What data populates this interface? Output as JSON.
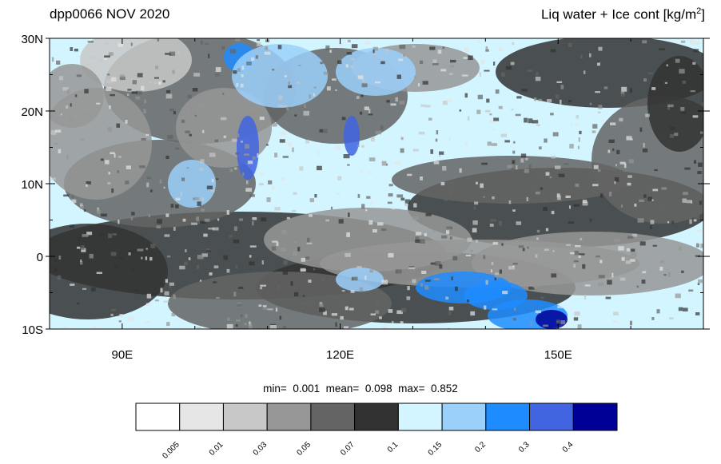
{
  "header": {
    "left_title": "dpp0066 NOV 2020",
    "right_title_prefix": "Liq water + Ice cont [kg/m",
    "right_title_sup": "2",
    "right_title_suffix": "]"
  },
  "map": {
    "lon_range": [
      80,
      170
    ],
    "lat_range": [
      -10,
      30
    ],
    "lat_ticks": [
      {
        "value": 30,
        "label": "30N"
      },
      {
        "value": 20,
        "label": "20N"
      },
      {
        "value": 10,
        "label": "10N"
      },
      {
        "value": 0,
        "label": "0"
      },
      {
        "value": -10,
        "label": "10S"
      }
    ],
    "lon_ticks": [
      {
        "value": 90,
        "label": "90E"
      },
      {
        "value": 120,
        "label": "120E"
      },
      {
        "value": 150,
        "label": "150E"
      }
    ]
  },
  "stats": {
    "min_label": "min=",
    "min_value": "0.001",
    "mean_label": "mean=",
    "mean_value": "0.098",
    "max_label": "max=",
    "max_value": "0.852"
  },
  "colorbar": {
    "colors": [
      "#ffffff",
      "#e6e6e6",
      "#c8c8c8",
      "#969696",
      "#646464",
      "#323232",
      "#d2f5ff",
      "#9bd0fa",
      "#1e8cff",
      "#4164e1",
      "#000096"
    ],
    "labels": [
      "0.005",
      "0.01",
      "0.03",
      "0.05",
      "0.07",
      "0.1",
      "0.15",
      "0.2",
      "0.3",
      "0.4"
    ]
  }
}
